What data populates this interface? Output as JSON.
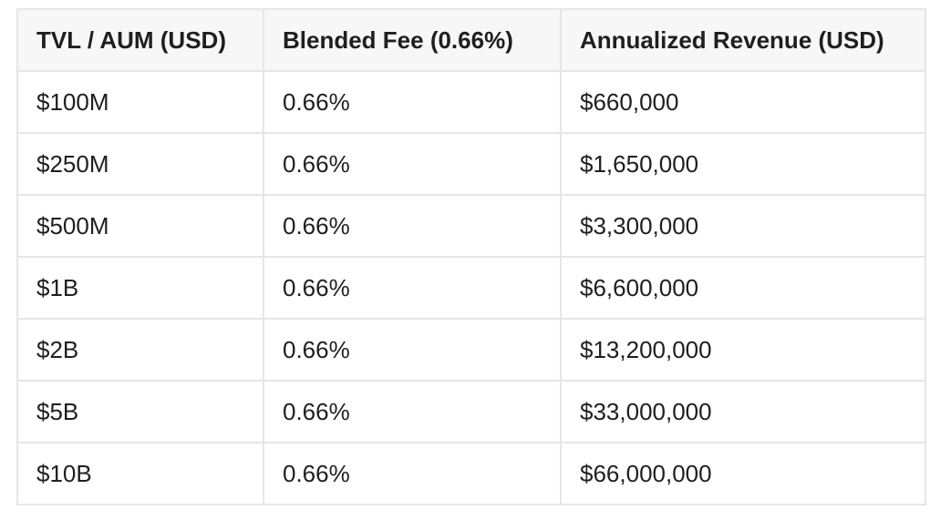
{
  "table": {
    "header": [
      "TVL / AUM (USD)",
      "Blended Fee (0.66%)",
      "Annualized Revenue (USD)"
    ],
    "rows": [
      [
        "$100M",
        "0.66%",
        "$660,000"
      ],
      [
        "$250M",
        "0.66%",
        "$1,650,000"
      ],
      [
        "$500M",
        "0.66%",
        "$3,300,000"
      ],
      [
        "$1B",
        "0.66%",
        "$6,600,000"
      ],
      [
        "$2B",
        "0.66%",
        "$13,200,000"
      ],
      [
        "$5B",
        "0.66%",
        "$33,000,000"
      ],
      [
        "$10B",
        "0.66%",
        "$66,000,000"
      ]
    ]
  }
}
